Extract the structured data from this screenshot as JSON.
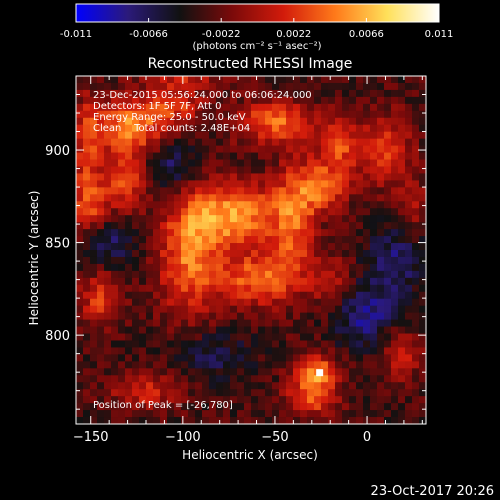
{
  "colorbar": {
    "ticks": [
      "-0.011",
      "-0.0066",
      "-0.0022",
      "0.0022",
      "0.0066",
      "0.011"
    ],
    "tick_values": [
      -0.011,
      -0.0066,
      -0.0022,
      0.0022,
      0.0066,
      0.011
    ],
    "range": [
      -0.011,
      0.011
    ],
    "units": "(photons cm⁻² s⁻¹ asec⁻²)",
    "colormap": [
      "#0000ff",
      "#2b1a7a",
      "#111111",
      "#7a0a0a",
      "#d21b0b",
      "#ff7a1a",
      "#ffe05a",
      "#ffffff"
    ]
  },
  "chart_data": {
    "type": "heatmap",
    "title": "Reconstructed RHESSI Image",
    "xlabel": "Heliocentric X (arcsec)",
    "ylabel": "Heliocentric Y (arcsec)",
    "xlim": [
      -158,
      32
    ],
    "ylim": [
      752,
      940
    ],
    "xticks": [
      -150,
      -100,
      -50,
      0
    ],
    "xtick_labels": [
      "−150",
      "−100",
      "−50",
      "0"
    ],
    "yticks": [
      800,
      850,
      900
    ],
    "ytick_labels": [
      "800",
      "850",
      "900"
    ],
    "annotations": [
      "23-Dec-2015 05:56:24.000 to 06:06:24.000",
      "Detectors: 1F 5F 7F, Att 0",
      "Energy Range: 25.0 - 50.0 keV",
      "Clean    Total counts: 2.48E+04"
    ],
    "peak_label": "Position of Peak = [-26,780]",
    "peak_position": [
      -26,
      780
    ],
    "grid": false,
    "sources": [
      {
        "x": -96,
        "y": 846,
        "amp": 1.0,
        "sx": 12,
        "sy": 26
      },
      {
        "x": -70,
        "y": 865,
        "amp": 1.1,
        "sx": 16,
        "sy": 12
      },
      {
        "x": -60,
        "y": 830,
        "amp": 0.9,
        "sx": 14,
        "sy": 10
      },
      {
        "x": -40,
        "y": 860,
        "amp": 0.8,
        "sx": 8,
        "sy": 22
      },
      {
        "x": -25,
        "y": 880,
        "amp": 0.9,
        "sx": 10,
        "sy": 10
      },
      {
        "x": -128,
        "y": 913,
        "amp": 1.0,
        "sx": 16,
        "sy": 10
      },
      {
        "x": -130,
        "y": 885,
        "amp": 0.8,
        "sx": 8,
        "sy": 12
      },
      {
        "x": -150,
        "y": 870,
        "amp": 0.7,
        "sx": 8,
        "sy": 12
      },
      {
        "x": -50,
        "y": 915,
        "amp": 0.9,
        "sx": 16,
        "sy": 8
      },
      {
        "x": -15,
        "y": 903,
        "amp": 0.7,
        "sx": 8,
        "sy": 10
      },
      {
        "x": 10,
        "y": 900,
        "amp": 0.7,
        "sx": 10,
        "sy": 14
      },
      {
        "x": 18,
        "y": 790,
        "amp": 0.6,
        "sx": 8,
        "sy": 10
      },
      {
        "x": -28,
        "y": 780,
        "amp": 1.1,
        "sx": 8,
        "sy": 7
      },
      {
        "x": -145,
        "y": 820,
        "amp": 0.7,
        "sx": 8,
        "sy": 10
      },
      {
        "x": -120,
        "y": 770,
        "amp": 0.6,
        "sx": 14,
        "sy": 7
      },
      {
        "x": -20,
        "y": 830,
        "amp": 0.5,
        "sx": 8,
        "sy": 10
      },
      {
        "x": -105,
        "y": 925,
        "amp": 0.6,
        "sx": 12,
        "sy": 6
      },
      {
        "x": -152,
        "y": 900,
        "amp": 0.6,
        "sx": 5,
        "sy": 20
      },
      {
        "x": -30,
        "y": 765,
        "amp": 0.8,
        "sx": 10,
        "sy": 6
      },
      {
        "x": 25,
        "y": 870,
        "amp": 0.5,
        "sx": 5,
        "sy": 10
      },
      {
        "x": -100,
        "y": 938,
        "amp": 0.5,
        "sx": 16,
        "sy": 4
      }
    ],
    "negative_sources": [
      {
        "x": -105,
        "y": 890,
        "amp": 0.6,
        "sx": 12,
        "sy": 12
      },
      {
        "x": -140,
        "y": 850,
        "amp": 0.5,
        "sx": 10,
        "sy": 10
      },
      {
        "x": 0,
        "y": 810,
        "amp": 0.6,
        "sx": 12,
        "sy": 12
      },
      {
        "x": -85,
        "y": 790,
        "amp": 0.4,
        "sx": 14,
        "sy": 10
      },
      {
        "x": 15,
        "y": 840,
        "amp": 0.5,
        "sx": 10,
        "sy": 14
      }
    ]
  },
  "footer": {
    "timestamp": "23-Oct-2017 20:26"
  }
}
